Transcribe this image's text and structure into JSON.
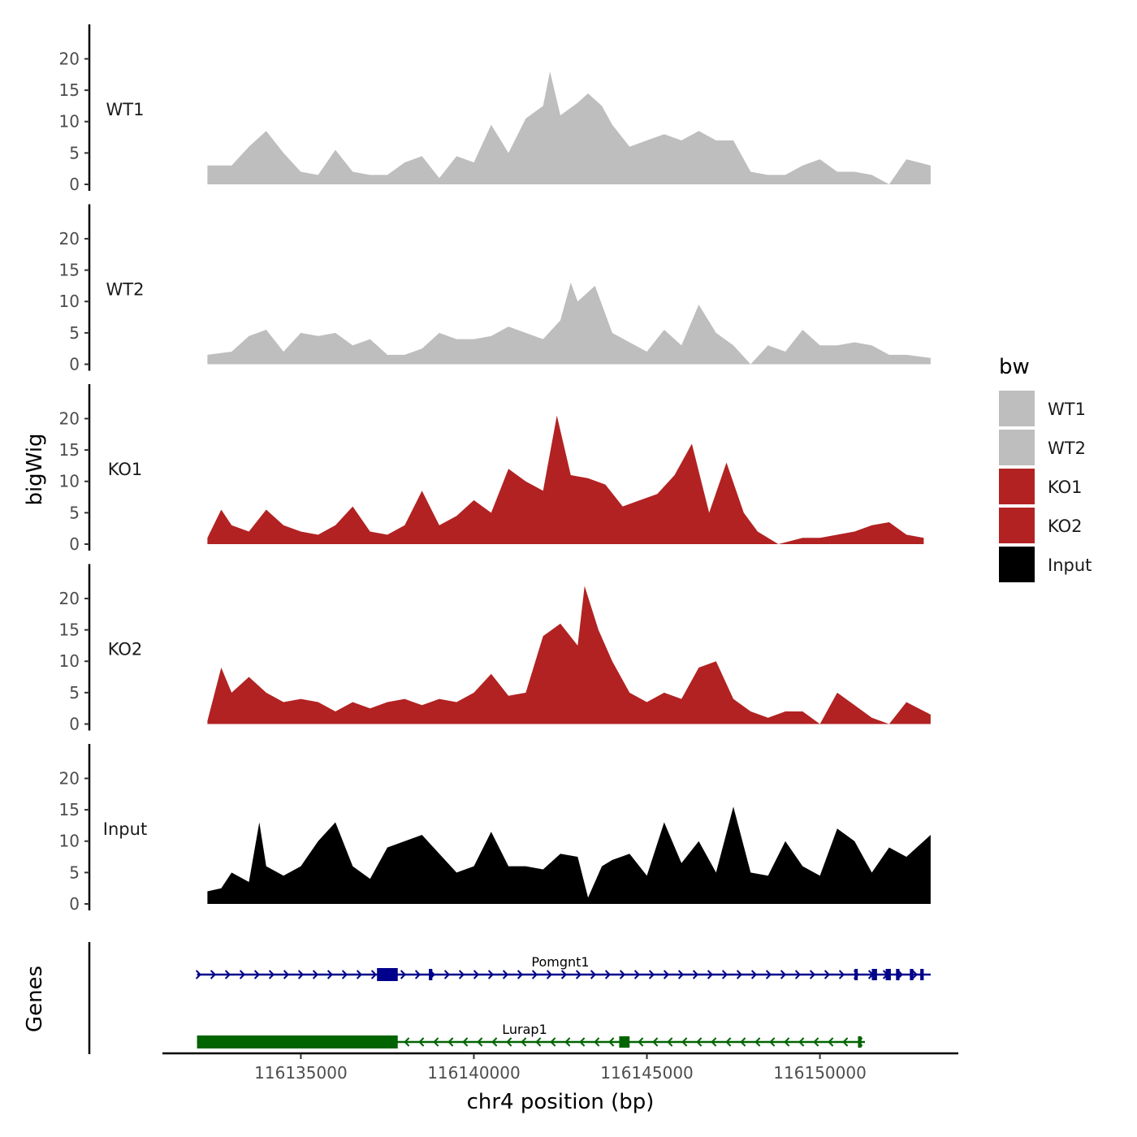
{
  "chart_data": {
    "type": "area",
    "ylabel": "bigWig",
    "xlabel": "chr4 position (bp)",
    "ylim": [
      0,
      22
    ],
    "yticks": [
      0,
      5,
      10,
      15,
      20
    ],
    "xlim": [
      116131000,
      116154000
    ],
    "xticks": [
      116135000,
      116140000,
      116145000,
      116150000
    ],
    "xtick_labels": [
      "116135000",
      "116140000",
      "116145000",
      "116150000"
    ],
    "genes_ylabel": "Genes",
    "legend": {
      "title": "bw",
      "position": "right",
      "entries": [
        {
          "label": "WT1",
          "color": "#bebebe"
        },
        {
          "label": "WT2",
          "color": "#bebebe"
        },
        {
          "label": "KO1",
          "color": "#b22222"
        },
        {
          "label": "KO2",
          "color": "#b22222"
        },
        {
          "label": "Input",
          "color": "#000000"
        }
      ]
    },
    "tracks": [
      {
        "name": "WT1",
        "color": "#bebebe",
        "x": [
          116132300,
          116133000,
          116133500,
          116134000,
          116134500,
          116135000,
          116135500,
          116136000,
          116136500,
          116137000,
          116137500,
          116138000,
          116138500,
          116139000,
          116139500,
          116140000,
          116140500,
          116141000,
          116141500,
          116142000,
          116142200,
          116142500,
          116143000,
          116143300,
          116143700,
          116144000,
          116144500,
          116145000,
          116145500,
          116146000,
          116146500,
          116147000,
          116147500,
          116148000,
          116148500,
          116149000,
          116149500,
          116150000,
          116150500,
          116151000,
          116151500,
          116152000,
          116152500,
          116153200
        ],
        "y": [
          3,
          3,
          6,
          8.5,
          5,
          2,
          1.5,
          5.5,
          2,
          1.5,
          1.5,
          3.5,
          4.5,
          1,
          4.5,
          3.5,
          9.5,
          5,
          10.5,
          12.5,
          18,
          11,
          13,
          14.5,
          12.5,
          9.5,
          6,
          7,
          8,
          7,
          8.5,
          7,
          7,
          2,
          1.5,
          1.5,
          3,
          4,
          2,
          2,
          1.5,
          0,
          4,
          3
        ]
      },
      {
        "name": "WT2",
        "color": "#bebebe",
        "x": [
          116132300,
          116133000,
          116133500,
          116134000,
          116134500,
          116135000,
          116135500,
          116136000,
          116136500,
          116137000,
          116137500,
          116138000,
          116138500,
          116139000,
          116139500,
          116140000,
          116140500,
          116141000,
          116141500,
          116142000,
          116142500,
          116142800,
          116143000,
          116143500,
          116144000,
          116144500,
          116145000,
          116145500,
          116146000,
          116146500,
          116147000,
          116147500,
          116148000,
          116148500,
          116149000,
          116149500,
          116150000,
          116150500,
          116151000,
          116151500,
          116152000,
          116152500,
          116153200
        ],
        "y": [
          1.5,
          2,
          4.5,
          5.5,
          2,
          5,
          4.5,
          5,
          3,
          4,
          1.5,
          1.5,
          2.5,
          5,
          4,
          4,
          4.5,
          6,
          5,
          4,
          7,
          13,
          10,
          12.5,
          5,
          3.5,
          2,
          5.5,
          3,
          9.5,
          5,
          3,
          0,
          3,
          2,
          5.5,
          3,
          3,
          3.5,
          3,
          1.5,
          1.5,
          1
        ]
      },
      {
        "name": "KO1",
        "color": "#b22222",
        "x": [
          116132300,
          116132700,
          116133000,
          116133500,
          116134000,
          116134500,
          116135000,
          116135500,
          116136000,
          116136500,
          116137000,
          116137500,
          116138000,
          116138500,
          116139000,
          116139500,
          116140000,
          116140500,
          116141000,
          116141500,
          116142000,
          116142400,
          116142800,
          116143300,
          116143800,
          116144300,
          116144800,
          116145300,
          116145800,
          116146300,
          116146800,
          116147300,
          116147800,
          116148200,
          116148800,
          116149500,
          116150000,
          116150500,
          116151000,
          116151500,
          116152000,
          116152500,
          116153000
        ],
        "y": [
          1,
          5.5,
          3,
          2,
          5.5,
          3,
          2,
          1.5,
          3,
          6,
          2,
          1.5,
          3,
          8.5,
          3,
          4.5,
          7,
          5,
          12,
          10,
          8.5,
          20.5,
          11,
          10.5,
          9.5,
          6,
          7,
          8,
          11,
          16,
          5,
          13,
          5,
          2,
          0,
          1,
          1,
          1.5,
          2,
          3,
          3.5,
          1.5,
          1
        ]
      },
      {
        "name": "KO2",
        "color": "#b22222",
        "x": [
          116132300,
          116132700,
          116133000,
          116133500,
          116134000,
          116134500,
          116135000,
          116135500,
          116136000,
          116136500,
          116137000,
          116137500,
          116138000,
          116138500,
          116139000,
          116139500,
          116140000,
          116140500,
          116141000,
          116141500,
          116142000,
          116142500,
          116143000,
          116143200,
          116143600,
          116144000,
          116144500,
          116145000,
          116145500,
          116146000,
          116146500,
          116147000,
          116147500,
          116148000,
          116148500,
          116149000,
          116149500,
          116150000,
          116150500,
          116151000,
          116151500,
          116152000,
          116152500,
          116153200
        ],
        "y": [
          0.5,
          9,
          5,
          7.5,
          5,
          3.5,
          4,
          3.5,
          2,
          3.5,
          2.5,
          3.5,
          4,
          3,
          4,
          3.5,
          5,
          8,
          4.5,
          5,
          14,
          16,
          12.5,
          22,
          15,
          10,
          5,
          3.5,
          5,
          4,
          9,
          10,
          4,
          2,
          1,
          2,
          2,
          0,
          5,
          3,
          1,
          0,
          3.5,
          1.5
        ]
      },
      {
        "name": "Input",
        "color": "#000000",
        "x": [
          116132300,
          116132700,
          116133000,
          116133500,
          116133800,
          116134000,
          116134500,
          116135000,
          116135500,
          116136000,
          116136500,
          116137000,
          116137500,
          116138000,
          116138500,
          116139000,
          116139500,
          116140000,
          116140500,
          116141000,
          116141500,
          116142000,
          116142500,
          116143000,
          116143300,
          116143700,
          116144000,
          116144500,
          116145000,
          116145500,
          116146000,
          116146500,
          116147000,
          116147500,
          116148000,
          116148500,
          116149000,
          116149500,
          116150000,
          116150500,
          116151000,
          116151500,
          116152000,
          116152500,
          116153200
        ],
        "y": [
          2,
          2.5,
          5,
          3.5,
          13,
          6,
          4.5,
          6,
          10,
          13,
          6,
          4,
          9,
          10,
          11,
          8,
          5,
          6,
          11.5,
          6,
          6,
          5.5,
          8,
          7.5,
          1,
          6,
          7,
          8,
          4.5,
          13,
          6.5,
          10,
          5,
          15.5,
          5,
          4.5,
          10,
          6,
          4.5,
          12,
          10,
          5,
          9,
          7.5,
          11
        ]
      }
    ],
    "genes": [
      {
        "name": "Pomgnt1",
        "strand": "+",
        "color": "#00008b",
        "start": 116132000,
        "end": 116153200,
        "exons": [
          [
            116137200,
            116137800
          ],
          [
            116138700,
            116138800
          ],
          [
            116151000,
            116151080
          ],
          [
            116151500,
            116151650
          ],
          [
            116151900,
            116152050
          ],
          [
            116152200,
            116152300
          ],
          [
            116152600,
            116152700
          ],
          [
            116152900,
            116153000
          ]
        ]
      },
      {
        "name": "Lurap1",
        "strand": "-",
        "color": "#006400",
        "start": 116132000,
        "end": 116151300,
        "exons": [
          [
            116132000,
            116137800
          ],
          [
            116144200,
            116144500
          ],
          [
            116151100,
            116151200
          ]
        ]
      }
    ]
  }
}
